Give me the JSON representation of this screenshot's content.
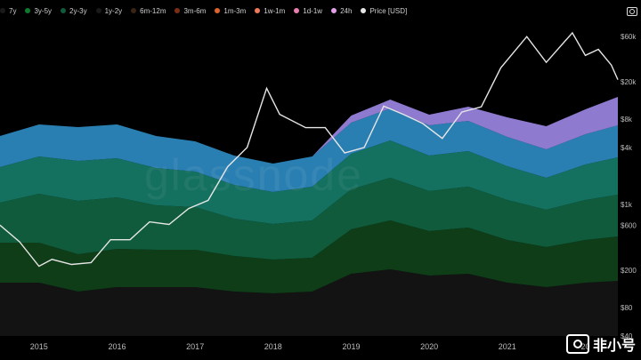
{
  "chart_data": {
    "type": "area",
    "title": "",
    "legend_position": "top-left",
    "legend": [
      {
        "label": "7y",
        "color": "#1a1a1a"
      },
      {
        "label": "3y-5y",
        "color": "#0e7a2c"
      },
      {
        "label": "2y-3y",
        "color": "#0f5b3b"
      },
      {
        "label": "1y-2y",
        "color": "#1a1a1a"
      },
      {
        "label": "6m-12m",
        "color": "#3a2414"
      },
      {
        "label": "3m-6m",
        "color": "#7a2e13"
      },
      {
        "label": "1m-3m",
        "color": "#e0622c"
      },
      {
        "label": "1w-1m",
        "color": "#ef7a59"
      },
      {
        "label": "1d-1w",
        "color": "#e77fb0"
      },
      {
        "label": "24h",
        "color": "#e3a0e8"
      },
      {
        "label": "Price [USD]",
        "color": "#e6e6e6"
      }
    ],
    "x_ticks": [
      "2015",
      "2016",
      "2017",
      "2018",
      "2019",
      "2020",
      "2021",
      "20"
    ],
    "y_ticks_right": [
      "$60k",
      "$20k",
      "$8k",
      "$4k",
      "$1k",
      "$600",
      "$200",
      "$80",
      "$40"
    ],
    "x_range": [
      "2014-07",
      "2022-06"
    ],
    "y_scale": "log",
    "y_range": [
      40,
      80000
    ],
    "grid": false,
    "series": [
      {
        "name": "7y",
        "color": "#131313",
        "values": [
          [
            "2014-07",
            60
          ],
          [
            "2015-01",
            60
          ],
          [
            "2015-07",
            50
          ],
          [
            "2016-01",
            55
          ],
          [
            "2016-07",
            55
          ],
          [
            "2017-01",
            55
          ],
          [
            "2017-07",
            50
          ],
          [
            "2018-01",
            48
          ],
          [
            "2018-07",
            50
          ],
          [
            "2019-01",
            70
          ],
          [
            "2019-07",
            75
          ],
          [
            "2020-01",
            68
          ],
          [
            "2020-07",
            70
          ],
          [
            "2021-01",
            60
          ],
          [
            "2021-07",
            55
          ],
          [
            "2022-01",
            60
          ],
          [
            "2022-06",
            62
          ]
        ]
      },
      {
        "name": "3y-5y",
        "color": "#0e3d18",
        "values": [
          [
            "2014-07",
            45
          ],
          [
            "2015-01",
            45
          ],
          [
            "2015-07",
            42
          ],
          [
            "2016-01",
            43
          ],
          [
            "2016-07",
            42
          ],
          [
            "2017-01",
            42
          ],
          [
            "2017-07",
            40
          ],
          [
            "2018-01",
            38
          ],
          [
            "2018-07",
            38
          ],
          [
            "2019-01",
            50
          ],
          [
            "2019-07",
            55
          ],
          [
            "2020-01",
            50
          ],
          [
            "2020-07",
            52
          ],
          [
            "2021-01",
            48
          ],
          [
            "2021-07",
            45
          ],
          [
            "2022-01",
            48
          ],
          [
            "2022-06",
            50
          ]
        ]
      },
      {
        "name": "2y-3y",
        "color": "#0f5b3b",
        "values": [
          [
            "2014-07",
            45
          ],
          [
            "2015-01",
            55
          ],
          [
            "2015-07",
            60
          ],
          [
            "2016-01",
            58
          ],
          [
            "2016-07",
            50
          ],
          [
            "2017-01",
            48
          ],
          [
            "2017-07",
            42
          ],
          [
            "2018-01",
            40
          ],
          [
            "2018-07",
            42
          ],
          [
            "2019-01",
            45
          ],
          [
            "2019-07",
            48
          ],
          [
            "2020-01",
            45
          ],
          [
            "2020-07",
            46
          ],
          [
            "2021-01",
            45
          ],
          [
            "2021-07",
            42
          ],
          [
            "2022-01",
            45
          ],
          [
            "2022-06",
            47
          ]
        ]
      },
      {
        "name": "1y-2y",
        "color": "#14705f",
        "values": [
          [
            "2014-07",
            40
          ],
          [
            "2015-01",
            42
          ],
          [
            "2015-07",
            45
          ],
          [
            "2016-01",
            44
          ],
          [
            "2016-07",
            42
          ],
          [
            "2017-01",
            40
          ],
          [
            "2017-07",
            38
          ],
          [
            "2018-01",
            36
          ],
          [
            "2018-07",
            38
          ],
          [
            "2019-01",
            40
          ],
          [
            "2019-07",
            42
          ],
          [
            "2020-01",
            40
          ],
          [
            "2020-07",
            40
          ],
          [
            "2021-01",
            38
          ],
          [
            "2021-07",
            36
          ],
          [
            "2022-01",
            40
          ],
          [
            "2022-06",
            42
          ]
        ]
      },
      {
        "name": "6m-12m",
        "color": "#2a7fb2",
        "values": [
          [
            "2014-07",
            35
          ],
          [
            "2015-01",
            36
          ],
          [
            "2015-07",
            38
          ],
          [
            "2016-01",
            38
          ],
          [
            "2016-07",
            36
          ],
          [
            "2017-01",
            34
          ],
          [
            "2017-07",
            33
          ],
          [
            "2018-01",
            32
          ],
          [
            "2018-07",
            34
          ],
          [
            "2019-01",
            35
          ],
          [
            "2019-07",
            36
          ],
          [
            "2020-01",
            34
          ],
          [
            "2020-07",
            34
          ],
          [
            "2021-01",
            33
          ],
          [
            "2021-07",
            32
          ],
          [
            "2022-01",
            34
          ],
          [
            "2022-06",
            36
          ]
        ]
      },
      {
        "name": "1w-1m",
        "color": "#8e7bd0",
        "values": [
          [
            "2014-07",
            0
          ],
          [
            "2015-01",
            0
          ],
          [
            "2015-07",
            0
          ],
          [
            "2016-01",
            0
          ],
          [
            "2016-07",
            0
          ],
          [
            "2017-01",
            0
          ],
          [
            "2017-07",
            0
          ],
          [
            "2018-01",
            0
          ],
          [
            "2018-07",
            0
          ],
          [
            "2019-01",
            8
          ],
          [
            "2019-07",
            10
          ],
          [
            "2020-01",
            12
          ],
          [
            "2020-07",
            16
          ],
          [
            "2021-01",
            22
          ],
          [
            "2021-07",
            26
          ],
          [
            "2022-01",
            28
          ],
          [
            "2022-06",
            32
          ]
        ]
      }
    ],
    "price": {
      "name": "Price [USD]",
      "color": "#e6e6e6",
      "values": [
        [
          "2014-07",
          600
        ],
        [
          "2014-10",
          400
        ],
        [
          "2015-01",
          220
        ],
        [
          "2015-03",
          260
        ],
        [
          "2015-06",
          230
        ],
        [
          "2015-09",
          240
        ],
        [
          "2015-12",
          420
        ],
        [
          "2016-03",
          420
        ],
        [
          "2016-06",
          650
        ],
        [
          "2016-09",
          610
        ],
        [
          "2016-12",
          900
        ],
        [
          "2017-03",
          1100
        ],
        [
          "2017-06",
          2500
        ],
        [
          "2017-09",
          4000
        ],
        [
          "2017-12",
          17000
        ],
        [
          "2018-02",
          9000
        ],
        [
          "2018-06",
          6500
        ],
        [
          "2018-09",
          6500
        ],
        [
          "2018-12",
          3500
        ],
        [
          "2019-03",
          4000
        ],
        [
          "2019-06",
          11000
        ],
        [
          "2019-09",
          9000
        ],
        [
          "2019-12",
          7200
        ],
        [
          "2020-03",
          5000
        ],
        [
          "2020-06",
          9500
        ],
        [
          "2020-09",
          10800
        ],
        [
          "2020-12",
          28000
        ],
        [
          "2021-04",
          60000
        ],
        [
          "2021-07",
          32000
        ],
        [
          "2021-11",
          66000
        ],
        [
          "2022-01",
          38000
        ],
        [
          "2022-03",
          44000
        ],
        [
          "2022-05",
          30000
        ],
        [
          "2022-06",
          21000
        ]
      ]
    }
  },
  "watermark": "glassnode",
  "logo_text": "非小号"
}
